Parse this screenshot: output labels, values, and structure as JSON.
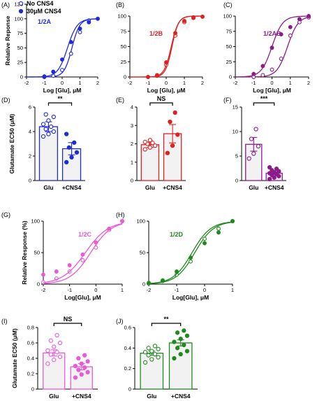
{
  "chart_data": [
    {
      "id": "A",
      "panel_label": "(A)",
      "type": "line",
      "inset_label": "1/2A",
      "color": "#1f2bd6",
      "xlim": [
        -2,
        2
      ],
      "ylim": [
        0,
        125
      ],
      "xticks": [
        -2,
        -1,
        0,
        1,
        2
      ],
      "yticks": [
        0,
        25,
        50,
        75,
        100,
        125
      ],
      "xlabel": "Log [Glu], μM",
      "ylabel": "Relative Reponse",
      "legend": [
        {
          "name": "No CNS4",
          "marker": "open"
        },
        {
          "name": "30μM CNS4",
          "marker": "filled"
        }
      ],
      "series": [
        {
          "name": "No CNS4",
          "marker": "open",
          "ec50": 0.55,
          "hill": 2.0,
          "x": [
            -1,
            -0.5,
            0,
            0.5,
            1,
            1.5
          ],
          "y": [
            0,
            2,
            12,
            40,
            77,
            97
          ]
        },
        {
          "name": "30μM CNS4",
          "marker": "filled",
          "ec50": 0.3,
          "hill": 1.6,
          "x": [
            -1,
            -0.5,
            0,
            0.5,
            1,
            1.5,
            2
          ],
          "y": [
            1,
            9,
            30,
            60,
            83,
            94,
            100
          ]
        }
      ]
    },
    {
      "id": "B",
      "panel_label": "(B)",
      "type": "line",
      "inset_label": "1/2B",
      "color": "#e02020",
      "xlim": [
        -2,
        2
      ],
      "ylim": [
        0,
        100
      ],
      "xticks": [
        -2,
        -1,
        0,
        1,
        2
      ],
      "yticks": [
        0,
        25,
        50,
        75,
        100
      ],
      "xlabel": "Log [Glu], μM",
      "ylabel": "",
      "series": [
        {
          "name": "open",
          "marker": "open",
          "ec50": 0.32,
          "hill": 2.4,
          "x": [
            -1,
            -0.5,
            0,
            0.5,
            1,
            1.5
          ],
          "y": [
            0,
            2,
            20,
            68,
            90,
            97
          ]
        },
        {
          "name": "filled",
          "marker": "filled",
          "ec50": 0.28,
          "hill": 2.2,
          "x": [
            -1,
            -0.5,
            0,
            0.5,
            1,
            1.5,
            2
          ],
          "y": [
            0,
            3,
            24,
            72,
            92,
            98,
            99
          ]
        }
      ]
    },
    {
      "id": "C",
      "panel_label": "(C)",
      "type": "line",
      "inset_label": "1/2AB",
      "color": "#8b1a8b",
      "xlim": [
        -2,
        2
      ],
      "ylim": [
        0,
        100
      ],
      "xticks": [
        -2,
        -1,
        0,
        1,
        2
      ],
      "yticks": [
        0,
        25,
        50,
        75,
        100
      ],
      "xlabel": "Log [Glu], μM",
      "ylabel": "",
      "series": [
        {
          "name": "open",
          "marker": "open",
          "ec50": 0.85,
          "hill": 1.5,
          "x": [
            -1,
            -0.5,
            0,
            0.5,
            1,
            1.5,
            2
          ],
          "y": [
            0,
            3,
            12,
            30,
            68,
            90,
            98
          ]
        },
        {
          "name": "filled",
          "marker": "filled",
          "ec50": 0.0,
          "hill": 1.5,
          "x": [
            -1,
            -0.5,
            0,
            0.5,
            1,
            1.5,
            2
          ],
          "y": [
            5,
            18,
            48,
            70,
            82,
            95,
            100
          ]
        }
      ]
    },
    {
      "id": "D",
      "panel_label": "(D)",
      "type": "bar",
      "color": "#1f2bd6",
      "categories": [
        "Glu",
        "+CNS4"
      ],
      "values": [
        4.4,
        2.6
      ],
      "errors": [
        0.4,
        0.5
      ],
      "ylim": [
        0,
        6
      ],
      "yticks": [
        0,
        2,
        4,
        6
      ],
      "ylabel": "Glutamate EC50 (μM)",
      "points": [
        [
          3.6,
          3.8,
          4.0,
          4.2,
          4.4,
          4.6,
          4.9,
          5.2,
          5.4
        ],
        [
          1.5,
          1.9,
          2.3,
          2.7,
          3.1,
          3.8
        ]
      ],
      "significance": "**"
    },
    {
      "id": "E",
      "panel_label": "(E)",
      "type": "bar",
      "color": "#e02020",
      "categories": [
        "Glu",
        "+CNS4"
      ],
      "values": [
        1.95,
        2.55
      ],
      "errors": [
        0.15,
        0.5
      ],
      "ylim": [
        0,
        4
      ],
      "yticks": [
        0,
        1,
        2,
        3,
        4
      ],
      "ylabel": "",
      "points": [
        [
          1.7,
          1.8,
          1.9,
          2.0,
          2.05,
          2.1,
          2.2
        ],
        [
          1.5,
          1.9,
          2.5,
          3.2,
          3.7
        ]
      ],
      "significance": "NS"
    },
    {
      "id": "F",
      "panel_label": "(F)",
      "type": "bar",
      "color": "#8b1a8b",
      "categories": [
        "Glu",
        "+CNS4"
      ],
      "values": [
        7.4,
        1.5
      ],
      "errors": [
        1.4,
        0.25
      ],
      "ylim": [
        0,
        15
      ],
      "yticks": [
        0,
        5,
        10,
        15
      ],
      "ylabel": "",
      "points": [
        [
          4.5,
          5.5,
          7.0,
          8.5,
          10.5
        ],
        [
          0.3,
          0.6,
          0.9,
          1.1,
          1.3,
          1.5,
          1.7,
          1.9,
          2.1,
          2.4,
          2.7
        ]
      ],
      "significance": "***"
    },
    {
      "id": "G",
      "panel_label": "(G)",
      "type": "line",
      "inset_label": "1/2C",
      "color": "#e85ad6",
      "xlim": [
        -2,
        1
      ],
      "ylim": [
        0,
        100
      ],
      "xticks": [
        -2,
        -1,
        0,
        1
      ],
      "yticks": [
        0,
        50,
        100
      ],
      "xlabel": "Log[Glu], μM",
      "ylabel": "Relative Response (%)",
      "series": [
        {
          "name": "open",
          "marker": "open",
          "ec50": -0.2,
          "hill": 1.1,
          "x": [
            -2,
            -1.5,
            -1,
            -0.5,
            0,
            0.5,
            1
          ],
          "y": [
            3,
            9,
            20,
            38,
            58,
            86,
            100
          ]
        },
        {
          "name": "filled",
          "marker": "filled",
          "ec50": -0.4,
          "hill": 1.0,
          "x": [
            -2,
            -1.5,
            -1,
            -0.5,
            0,
            0.5,
            1
          ],
          "y": [
            15,
            20,
            30,
            47,
            66,
            88,
            100
          ]
        }
      ]
    },
    {
      "id": "H",
      "panel_label": "(H)",
      "type": "line",
      "inset_label": "1/2D",
      "color": "#1e8a1e",
      "xlim": [
        -2,
        1
      ],
      "ylim": [
        0,
        100
      ],
      "xticks": [
        -2,
        -1,
        0,
        1
      ],
      "yticks": [
        0,
        50,
        100
      ],
      "xlabel": "Log[Glu], μM",
      "ylabel": "",
      "series": [
        {
          "name": "open",
          "marker": "open",
          "ec50": -0.35,
          "hill": 1.3,
          "x": [
            -2,
            -1.5,
            -1,
            -0.5,
            0,
            0.5,
            1
          ],
          "y": [
            1,
            5,
            15,
            36,
            72,
            88,
            100
          ]
        },
        {
          "name": "filled",
          "marker": "filled",
          "ec50": -0.45,
          "hill": 1.3,
          "x": [
            -2,
            -1.5,
            -1,
            -0.5,
            0,
            0.5,
            1
          ],
          "y": [
            2,
            6,
            20,
            42,
            65,
            82,
            100
          ]
        }
      ]
    },
    {
      "id": "I",
      "panel_label": "(I)",
      "type": "bar",
      "color": "#e85ad6",
      "categories": [
        "Glu",
        "+CNS4"
      ],
      "values": [
        0.47,
        0.29
      ],
      "errors": [
        0.04,
        0.04
      ],
      "ylim": [
        0,
        0.8
      ],
      "yticks": [
        0,
        0.2,
        0.4,
        0.6,
        0.8
      ],
      "ylabel": "Glutamate EC50 (μM)",
      "points": [
        [
          0.33,
          0.38,
          0.42,
          0.45,
          0.48,
          0.5,
          0.55,
          0.6,
          0.63,
          0.7
        ],
        [
          0.15,
          0.19,
          0.22,
          0.25,
          0.28,
          0.3,
          0.33,
          0.36,
          0.4,
          0.44
        ]
      ],
      "significance": "NS"
    },
    {
      "id": "J",
      "panel_label": "(J)",
      "type": "bar",
      "color": "#1e8a1e",
      "categories": [
        "Glu",
        "+CNS4"
      ],
      "values": [
        0.35,
        0.45
      ],
      "errors": [
        0.02,
        0.03
      ],
      "ylim": [
        0,
        0.6
      ],
      "yticks": [
        0,
        0.2,
        0.4,
        0.6
      ],
      "ylabel": "",
      "points": [
        [
          0.26,
          0.29,
          0.31,
          0.33,
          0.34,
          0.36,
          0.37,
          0.39,
          0.4,
          0.42
        ],
        [
          0.3,
          0.34,
          0.37,
          0.4,
          0.43,
          0.46,
          0.49,
          0.52,
          0.55,
          0.57
        ]
      ],
      "significance": "**"
    }
  ]
}
